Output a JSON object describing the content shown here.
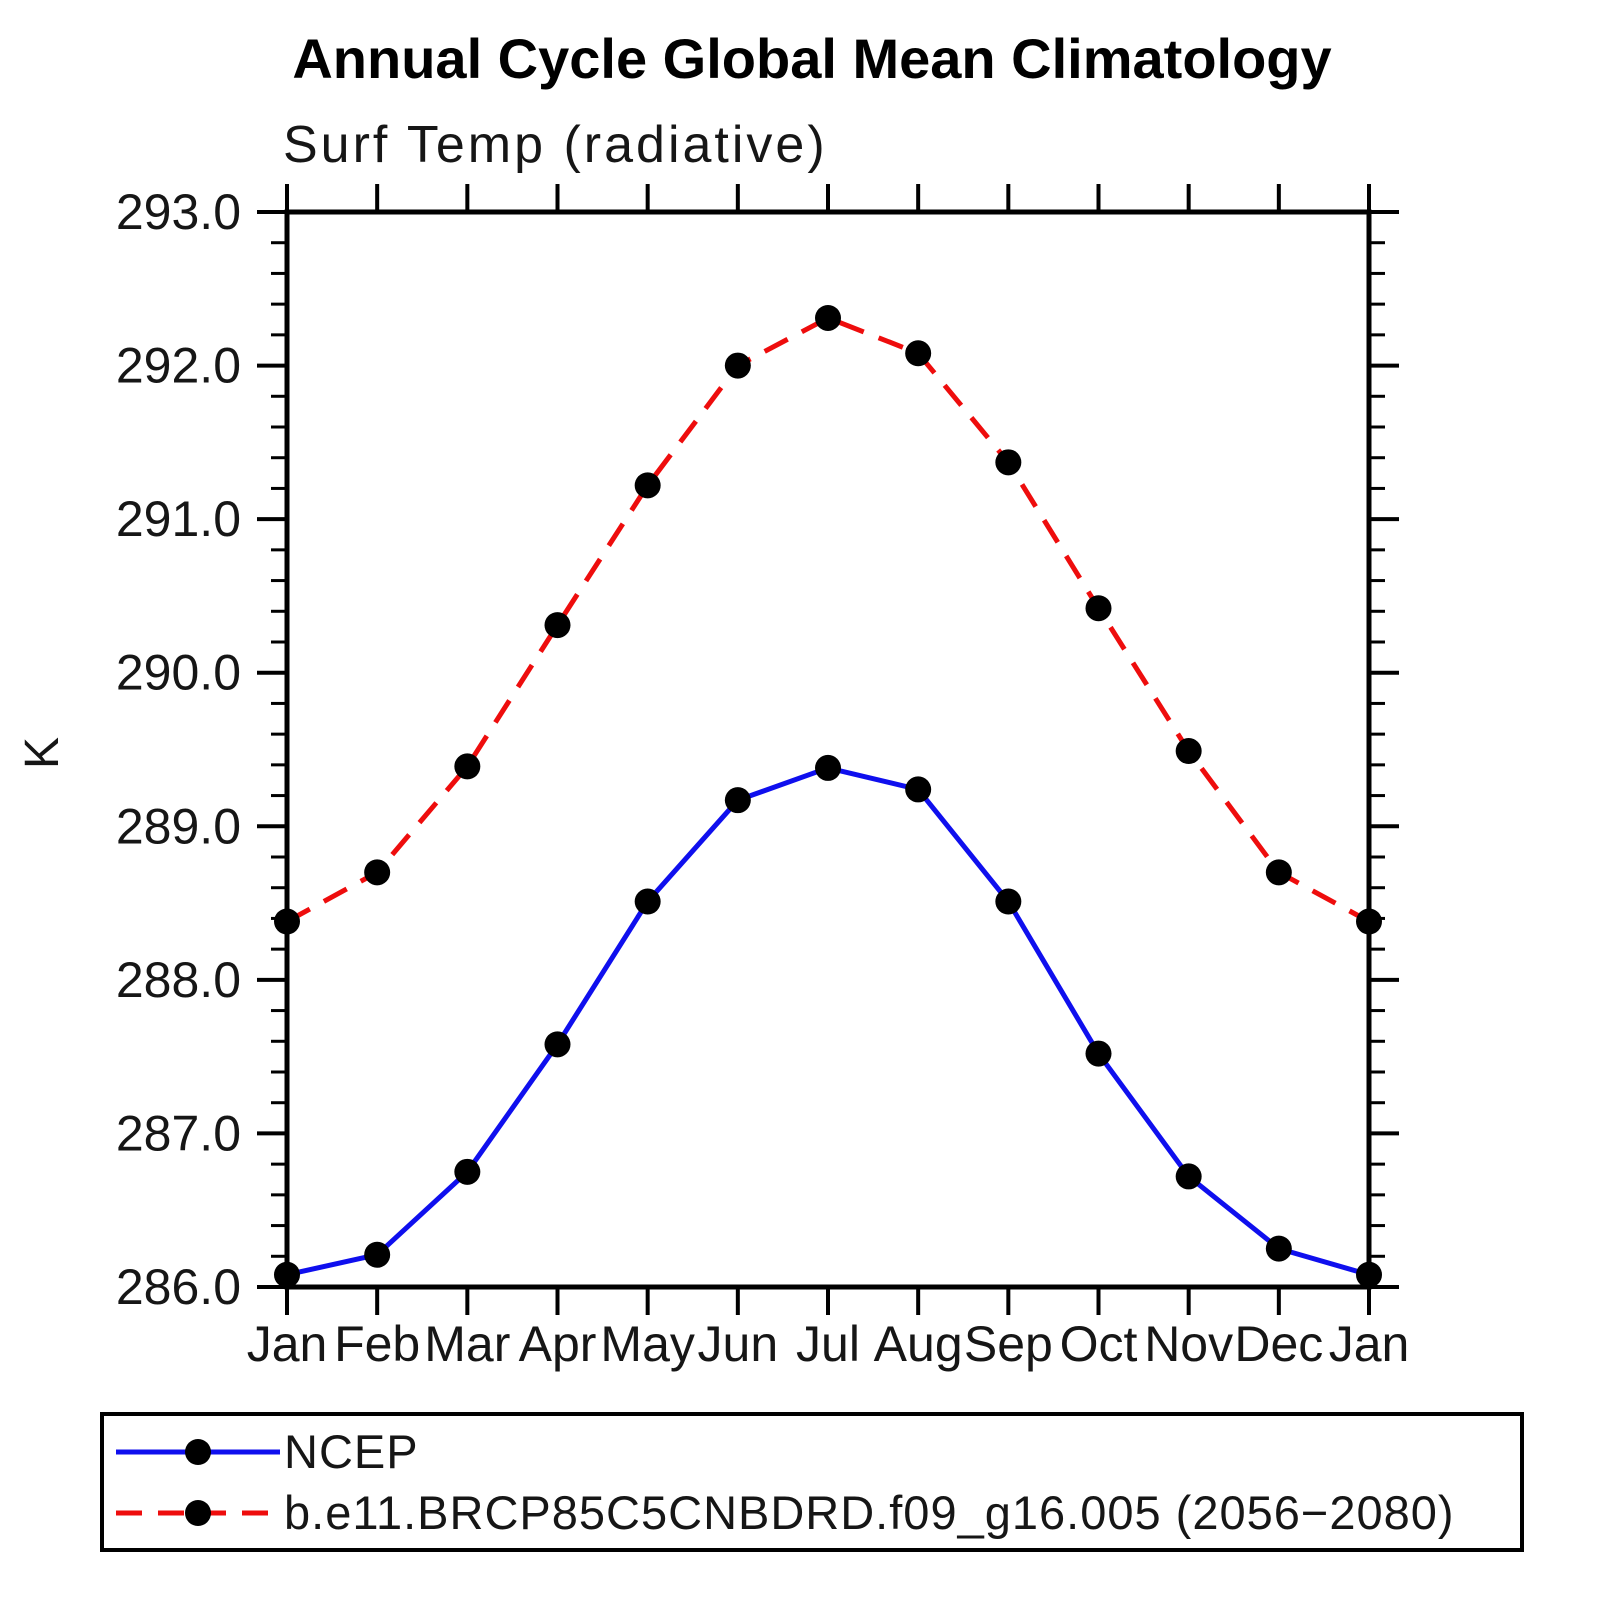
{
  "header": {
    "title": "Annual Cycle Global Mean Climatology",
    "subtitle": "Surf Temp (radiative)"
  },
  "colors": {
    "axis": "#000000",
    "marker": "#000000",
    "ncep_line": "#0f0fee",
    "model_line": "#ee0d0d",
    "background": "#ffffff"
  },
  "chart_data": {
    "type": "line",
    "title": "Annual Cycle Global Mean Climatology",
    "subtitle": "Surf Temp (radiative)",
    "xlabel": "",
    "ylabel": "K",
    "x_tick_labels": [
      "Jan",
      "Feb",
      "Mar",
      "Apr",
      "May",
      "Jun",
      "Jul",
      "Aug",
      "Sep",
      "Oct",
      "Nov",
      "Dec",
      "Jan"
    ],
    "ylim": [
      286.0,
      293.0
    ],
    "y_major_step": 1.0,
    "y_minor_step": 0.2,
    "y_major_tick_labels": [
      "286.0",
      "287.0",
      "288.0",
      "289.0",
      "290.0",
      "291.0",
      "292.0",
      "293.0"
    ],
    "grid": false,
    "frame": "box-with-outward-ticks",
    "legend_position": "below-left-boxed",
    "series": [
      {
        "id": "ncep",
        "name": "NCEP",
        "color": "#0f0fee",
        "style": "solid",
        "marker": "filled-circle",
        "marker_color": "#000000",
        "values": [
          286.08,
          286.21,
          286.75,
          287.58,
          288.51,
          289.17,
          289.38,
          289.24,
          288.51,
          287.52,
          286.72,
          286.25,
          286.08
        ]
      },
      {
        "id": "model",
        "name": "b.e11.BRCP85C5CNBDRD.f09_g16.005 (2056−2080)",
        "color": "#ee0d0d",
        "style": "dashed",
        "marker": "filled-circle",
        "marker_color": "#000000",
        "values": [
          288.38,
          288.7,
          289.39,
          290.31,
          291.22,
          292.0,
          292.31,
          292.08,
          291.37,
          290.42,
          289.49,
          288.7,
          288.38
        ]
      }
    ]
  }
}
